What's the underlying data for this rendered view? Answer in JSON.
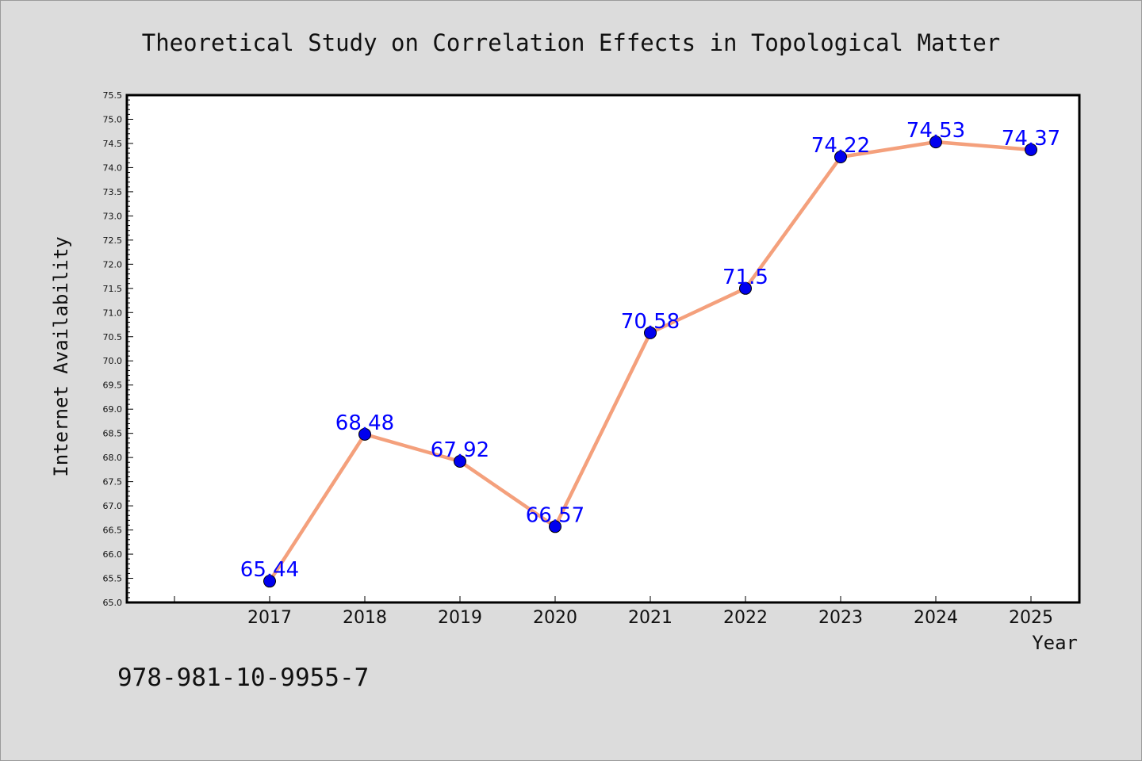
{
  "chart_data": {
    "type": "line",
    "title": "Theoretical Study on Correlation Effects in Topological Matter",
    "xlabel": "Year",
    "ylabel": "Internet Availability",
    "categories": [
      "2017",
      "2018",
      "2019",
      "2020",
      "2021",
      "2022",
      "2023",
      "2024",
      "2025"
    ],
    "series": [
      {
        "values": [
          65.44,
          68.48,
          67.92,
          66.57,
          70.58,
          71.5,
          74.22,
          74.53,
          74.37
        ],
        "data_labels": [
          "65.44",
          "68.48",
          "67.92",
          "66.57",
          "70.58",
          "71.5",
          "74.22",
          "74.53",
          "74.37"
        ],
        "line_color": "#f4a07c",
        "marker_color": "#0000ee"
      }
    ],
    "ylim": [
      65.0,
      75.5
    ],
    "yticks": [
      "65.0",
      "65.5",
      "66.0",
      "66.5",
      "67.0",
      "67.5",
      "68.0",
      "68.5",
      "69.0",
      "69.5",
      "70.0",
      "70.5",
      "71.0",
      "71.5",
      "72.0",
      "72.5",
      "73.0",
      "73.5",
      "74.0",
      "74.5",
      "75.0",
      "75.5"
    ],
    "grid": false,
    "legend": "none",
    "label_color": "#0000ff"
  },
  "footer": {
    "isbn": "978-981-10-9955-7"
  }
}
